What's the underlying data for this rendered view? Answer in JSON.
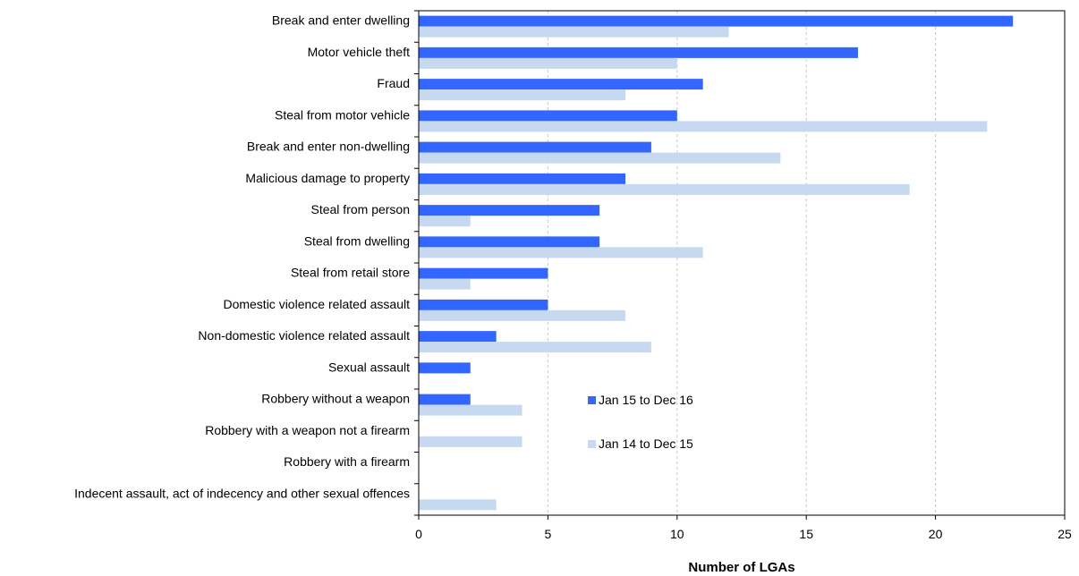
{
  "chart_data": {
    "type": "bar",
    "orientation": "horizontal",
    "categories": [
      "Break and enter dwelling",
      "Motor vehicle theft",
      "Fraud",
      "Steal from motor vehicle",
      "Break and enter non-dwelling",
      "Malicious damage to property",
      "Steal from person",
      "Steal from dwelling",
      "Steal from retail store",
      "Domestic violence related assault",
      "Non-domestic violence related assault",
      "Sexual assault",
      "Robbery without a weapon",
      "Robbery with a weapon not a firearm",
      "Robbery with a firearm",
      "Indecent assault, act of indecency and other sexual offences"
    ],
    "series": [
      {
        "name": "Jan 15 to Dec 16",
        "color": "#3366ff",
        "values": [
          23,
          17,
          11,
          10,
          9,
          8,
          7,
          7,
          5,
          5,
          3,
          2,
          2,
          0,
          0,
          0
        ]
      },
      {
        "name": "Jan 14 to Dec 15",
        "color": "#c6d9f1",
        "values": [
          12,
          10,
          8,
          22,
          14,
          19,
          2,
          11,
          2,
          8,
          9,
          0,
          4,
          4,
          0,
          3
        ]
      }
    ],
    "xlabel": "Number of LGAs",
    "ylabel": "",
    "xlim": [
      0,
      25
    ],
    "xticks": [
      0,
      5,
      10,
      15,
      20,
      25
    ],
    "grid": "vertical dashed",
    "legend_position": "inside, lower-middle"
  }
}
